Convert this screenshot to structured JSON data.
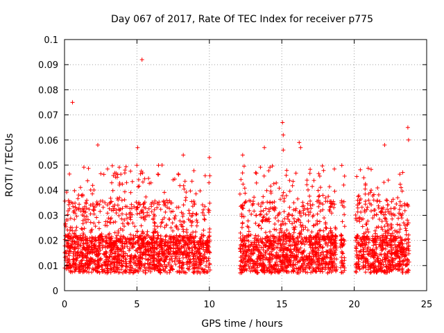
{
  "chart_data": {
    "type": "scatter",
    "title": "Day 067 of 2017, Rate Of TEC Index for receiver p775",
    "xlabel": "GPS time / hours",
    "ylabel": "ROTI / TECUs",
    "xlim": [
      0,
      25
    ],
    "ylim": [
      0,
      0.1
    ],
    "xticks": [
      0,
      5,
      10,
      15,
      20,
      25
    ],
    "xtick_labels": [
      "0",
      "5",
      "10",
      "15",
      "20",
      "25"
    ],
    "yticks": [
      0,
      0.01,
      0.02,
      0.03,
      0.04,
      0.05,
      0.06,
      0.07,
      0.08,
      0.09,
      0.1
    ],
    "ytick_labels": [
      "0",
      "0.01",
      "0.02",
      "0.03",
      "0.04",
      "0.05",
      "0.06",
      "0.07",
      "0.08",
      "0.09",
      "0.1"
    ],
    "grid": true,
    "marker": "+",
    "color": "#ff0000",
    "coverage_hours": [
      [
        0,
        10.05
      ],
      [
        12.1,
        18.8
      ],
      [
        19.05,
        19.35
      ],
      [
        20.1,
        23.8
      ]
    ],
    "typical_range": [
      0.005,
      0.03
    ],
    "outliers": [
      {
        "x": 0.55,
        "y": 0.075
      },
      {
        "x": 2.3,
        "y": 0.058
      },
      {
        "x": 5.05,
        "y": 0.057
      },
      {
        "x": 5.35,
        "y": 0.092
      },
      {
        "x": 8.2,
        "y": 0.054
      },
      {
        "x": 10.0,
        "y": 0.053
      },
      {
        "x": 12.3,
        "y": 0.054
      },
      {
        "x": 13.8,
        "y": 0.057
      },
      {
        "x": 15.05,
        "y": 0.067
      },
      {
        "x": 15.1,
        "y": 0.062
      },
      {
        "x": 15.1,
        "y": 0.056
      },
      {
        "x": 16.2,
        "y": 0.059
      },
      {
        "x": 16.3,
        "y": 0.057
      },
      {
        "x": 22.1,
        "y": 0.058
      },
      {
        "x": 23.7,
        "y": 0.065
      },
      {
        "x": 23.75,
        "y": 0.06
      }
    ]
  }
}
